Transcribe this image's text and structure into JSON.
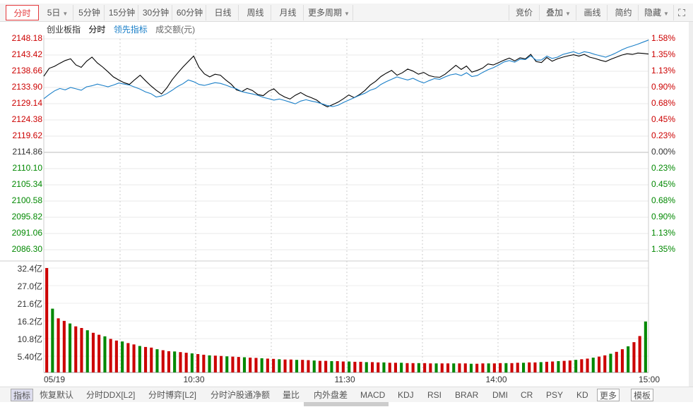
{
  "toolbar": {
    "tabs": [
      {
        "label": "分时",
        "active": true
      },
      {
        "label": "5日",
        "dropdown": true
      },
      {
        "label": "5分钟"
      },
      {
        "label": "15分钟"
      },
      {
        "label": "30分钟"
      },
      {
        "label": "60分钟"
      },
      {
        "label": "日线"
      },
      {
        "label": "周线"
      },
      {
        "label": "月线"
      },
      {
        "label": "更多周期",
        "dropdown": true
      }
    ],
    "right": [
      {
        "label": "竞价"
      },
      {
        "label": "叠加",
        "dropdown": true
      },
      {
        "label": "画线"
      },
      {
        "label": "简约"
      },
      {
        "label": "隐藏",
        "dropdown": true
      }
    ]
  },
  "legend": {
    "index_name": "创业板指",
    "mode": "分时",
    "lead_indicator": "领先指标",
    "volume_label": "成交额(元)"
  },
  "axes": {
    "price_up": [
      "2148.18",
      "2143.42",
      "2138.66",
      "2133.90",
      "2129.14",
      "2124.38",
      "2119.62"
    ],
    "price_mid": "2114.86",
    "price_down": [
      "2110.10",
      "2105.34",
      "2100.58",
      "2095.82",
      "2091.06",
      "2086.30"
    ],
    "pct_up": [
      "1.58%",
      "1.35%",
      "1.13%",
      "0.90%",
      "0.68%",
      "0.45%",
      "0.23%"
    ],
    "pct_mid": "0.00%",
    "pct_down": [
      "0.23%",
      "0.45%",
      "0.68%",
      "0.90%",
      "1.13%",
      "1.35%"
    ],
    "volume": [
      "32.4亿",
      "27.0亿",
      "21.6亿",
      "16.2亿",
      "10.8亿",
      "5.40亿"
    ],
    "time": [
      "05/19",
      "10:30",
      "11:30",
      "14:00",
      "15:00"
    ]
  },
  "bottombar": {
    "items": [
      "指标",
      "恢复默认",
      "分时DDX[L2]",
      "分时博弈[L2]",
      "分时沪股通净额",
      "量比",
      "内外盘差",
      "MACD",
      "KDJ",
      "RSI",
      "BRAR",
      "DMI",
      "CR",
      "PSY",
      "KD",
      "更多",
      "模板"
    ]
  },
  "colors": {
    "price_line": "#000000",
    "lead_line": "#1a7fc8",
    "up": "#cc0000",
    "down": "#008800"
  },
  "chart_data": {
    "type": "line",
    "base_price": 2114.86,
    "series": [
      {
        "values": [
          2137.2,
          2139.5,
          2140.1,
          2141.0,
          2141.8,
          2142.3,
          2140.5,
          2139.8,
          2141.6,
          2142.8,
          2141.1,
          2139.9,
          2138.5,
          2137.0,
          2136.1,
          2135.3,
          2134.8,
          2136.2,
          2137.5,
          2135.9,
          2134.4,
          2133.1,
          2132.0,
          2133.8,
          2136.2,
          2138.1,
          2139.9,
          2141.5,
          2143.1,
          2139.8,
          2137.9,
          2137.0,
          2137.8,
          2137.5,
          2136.1,
          2134.9,
          2133.2,
          2132.7,
          2133.6,
          2133.0,
          2131.8,
          2131.5,
          2132.8,
          2133.5,
          2132.0,
          2131.1,
          2130.5,
          2131.6,
          2132.4,
          2131.5,
          2130.9,
          2130.2,
          2129.0,
          2128.2,
          2128.9,
          2129.6,
          2130.6,
          2131.7,
          2130.9,
          2131.8,
          2133.0,
          2134.6,
          2135.7,
          2137.1,
          2138.1,
          2138.9,
          2137.5,
          2138.2,
          2139.3,
          2138.7,
          2137.8,
          2138.3,
          2137.4,
          2137.0,
          2136.9,
          2137.8,
          2139.1,
          2140.4,
          2139.2,
          2140.2,
          2138.4,
          2138.9,
          2139.6,
          2140.8,
          2140.5,
          2141.2,
          2141.9,
          2142.5,
          2141.7,
          2142.6,
          2142.3,
          2143.6,
          2141.5,
          2141.2,
          2142.7,
          2141.6,
          2142.3,
          2142.8,
          2143.2,
          2143.5,
          2143.1,
          2143.6,
          2142.8,
          2142.4,
          2141.9,
          2141.5,
          2142.2,
          2142.8,
          2143.4,
          2143.8,
          2143.6,
          2144.0,
          2143.9,
          2143.7
        ]
      },
      {
        "values": [
          2130.6,
          2131.8,
          2132.9,
          2133.6,
          2133.2,
          2133.9,
          2133.5,
          2133.1,
          2134.1,
          2134.4,
          2134.9,
          2134.5,
          2134.1,
          2134.6,
          2135.2,
          2134.9,
          2134.6,
          2134.0,
          2133.4,
          2132.6,
          2132.1,
          2131.1,
          2131.4,
          2132.1,
          2133.1,
          2134.2,
          2135.0,
          2136.1,
          2135.6,
          2134.8,
          2134.5,
          2134.9,
          2135.3,
          2135.1,
          2134.6,
          2134.0,
          2133.5,
          2132.7,
          2132.3,
          2132.0,
          2131.6,
          2131.0,
          2130.6,
          2130.2,
          2130.5,
          2130.1,
          2129.6,
          2129.1,
          2129.9,
          2130.3,
          2129.9,
          2129.6,
          2129.1,
          2128.6,
          2128.3,
          2128.7,
          2129.5,
          2130.2,
          2130.9,
          2131.6,
          2132.2,
          2133.1,
          2133.6,
          2134.8,
          2135.6,
          2136.3,
          2137.0,
          2136.5,
          2136.1,
          2136.6,
          2135.8,
          2135.2,
          2135.9,
          2136.5,
          2136.3,
          2137.0,
          2137.6,
          2137.9,
          2137.4,
          2138.2,
          2137.1,
          2137.4,
          2138.3,
          2139.1,
          2139.7,
          2140.5,
          2141.4,
          2141.8,
          2141.3,
          2142.2,
          2142.1,
          2143.2,
          2141.9,
          2142.0,
          2143.1,
          2142.4,
          2142.8,
          2143.6,
          2144.0,
          2144.4,
          2143.8,
          2144.4,
          2144.1,
          2143.6,
          2143.2,
          2142.8,
          2143.4,
          2144.1,
          2144.9,
          2145.6,
          2146.1,
          2146.6,
          2147.2,
          2147.8
        ]
      }
    ],
    "volume_yi": [
      32.4,
      19.8,
      16.8,
      16.0,
      15.2,
      14.3,
      13.8,
      13.1,
      12.3,
      11.7,
      11.2,
      10.4,
      9.9,
      9.6,
      9.1,
      8.7,
      8.2,
      7.9,
      7.7,
      7.2,
      6.9,
      6.6,
      6.5,
      6.3,
      6.1,
      5.9,
      5.7,
      5.5,
      5.3,
      5.2,
      5.1,
      5.0,
      4.9,
      4.8,
      4.7,
      4.6,
      4.5,
      4.4,
      4.3,
      4.2,
      4.1,
      4.0,
      4.0,
      3.9,
      3.9,
      3.8,
      3.7,
      3.6,
      3.6,
      3.5,
      3.5,
      3.4,
      3.4,
      3.3,
      3.3,
      3.2,
      3.2,
      3.1,
      3.1,
      3.0,
      3.0,
      3.0,
      2.9,
      2.9,
      2.9,
      2.9,
      2.8,
      2.8,
      2.8,
      2.8,
      2.8,
      2.8,
      2.8,
      2.7,
      2.7,
      2.8,
      2.8,
      2.8,
      2.9,
      2.9,
      2.9,
      3.0,
      3.0,
      3.1,
      3.1,
      3.2,
      3.3,
      3.4,
      3.5,
      3.6,
      3.7,
      3.9,
      4.1,
      4.3,
      4.6,
      4.9,
      5.3,
      5.8,
      6.4,
      7.2,
      8.1,
      9.4,
      11.3,
      15.8
    ]
  }
}
